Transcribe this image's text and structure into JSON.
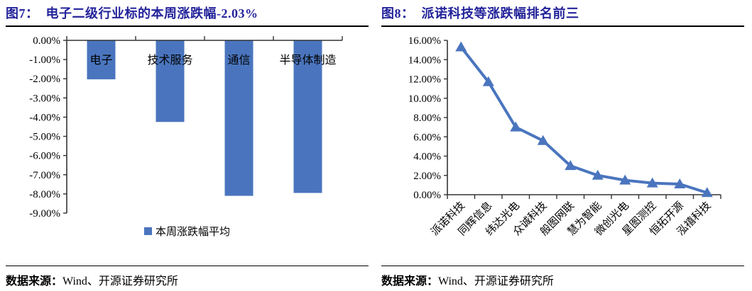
{
  "colors": {
    "accent_blue": "#4a75be",
    "title_navy": "#23239b",
    "axis_color": "#333333",
    "text_color": "#000000"
  },
  "left_panel": {
    "title_label": "图7：",
    "title_text": "电子二级行业标的本周涨跌幅-2.03%",
    "legend_label": "本周涨跌幅平均",
    "source_prefix": "数据来源：",
    "source_text": "Wind、开源证券研究所"
  },
  "right_panel": {
    "title_label": "图8：",
    "title_text": "派诺科技等涨跌幅排名前三",
    "source_prefix": "数据来源：",
    "source_text": "Wind、开源证券研究所"
  },
  "chart_data": [
    {
      "type": "bar",
      "title": "图7：电子二级行业标的本周涨跌幅-2.03%",
      "series_name": "本周涨跌幅平均",
      "categories": [
        "电子",
        "技术服务",
        "通信",
        "半导体制造"
      ],
      "values": [
        -2.03,
        -4.25,
        -8.1,
        -7.95
      ],
      "ylim": [
        -9,
        0
      ],
      "ytick_labels": [
        "0.00%",
        "-1.00%",
        "-2.00%",
        "-3.00%",
        "-4.00%",
        "-5.00%",
        "-6.00%",
        "-7.00%",
        "-8.00%",
        "-9.00%"
      ],
      "bar_color": "#4a75be",
      "grid": false,
      "legend_position": "bottom"
    },
    {
      "type": "line",
      "title": "图8：派诺科技等涨跌幅排名前三",
      "categories": [
        "派诺科技",
        "同辉信息",
        "纬达光电",
        "众诚科技",
        "般图网联",
        "慧为智能",
        "微创光电",
        "星图测控",
        "恒拓开源",
        "泓禧科技"
      ],
      "values": [
        15.3,
        11.7,
        7.0,
        5.6,
        3.0,
        2.0,
        1.5,
        1.2,
        1.1,
        0.2
      ],
      "ylim": [
        0,
        16
      ],
      "ytick_labels": [
        "16.00%",
        "14.00%",
        "12.00%",
        "10.00%",
        "8.00%",
        "6.00%",
        "4.00%",
        "2.00%",
        "0.00%"
      ],
      "line_color": "#4a75be",
      "marker": "triangle",
      "grid": false,
      "legend_position": "none"
    }
  ]
}
